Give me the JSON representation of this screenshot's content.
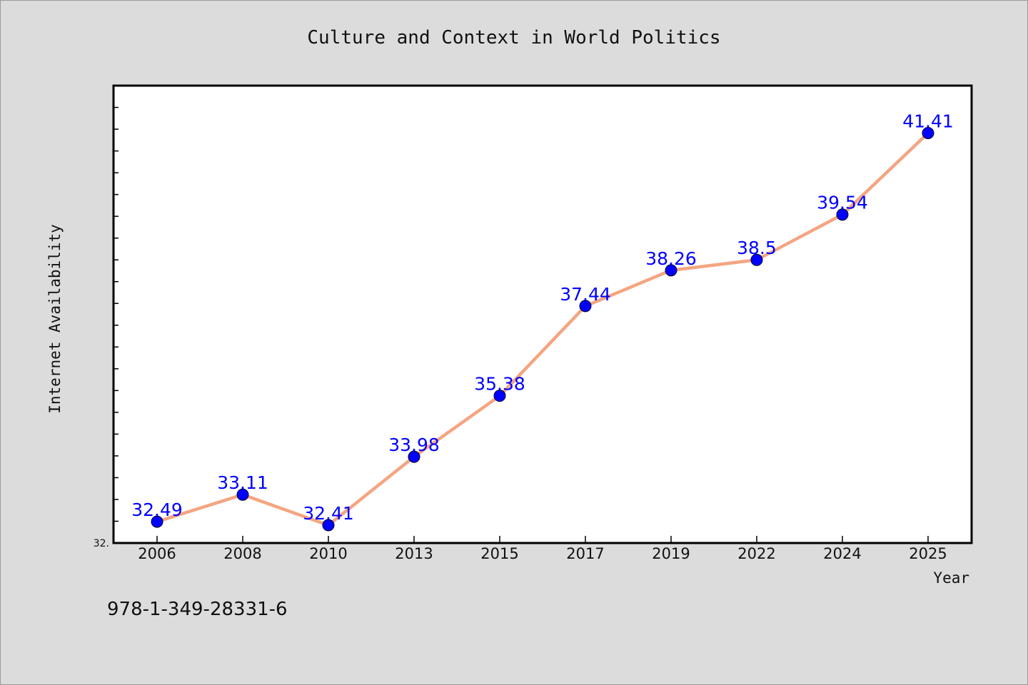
{
  "chart_data": {
    "type": "line",
    "title": "Culture and Context in World Politics",
    "xlabel": "Year",
    "ylabel": "Internet Availability",
    "categories": [
      "2006",
      "2008",
      "2010",
      "2013",
      "2015",
      "2017",
      "2019",
      "2022",
      "2024",
      "2025"
    ],
    "series": [
      {
        "values": [
          32.49,
          33.11,
          32.41,
          33.98,
          35.38,
          37.44,
          38.26,
          38.5,
          39.54,
          41.41
        ]
      }
    ],
    "data_labels": [
      "32.49",
      "33.11",
      "32.41",
      "33.98",
      "35.38",
      "37.44",
      "38.26",
      "38.5",
      "39.54",
      "41.41"
    ],
    "ylim": [
      32.0,
      42.5
    ],
    "y_tick_labels": [
      "32."
    ],
    "grid": false,
    "colors": {
      "line": "#f4a582",
      "marker": "#0000ff",
      "label": "#0000ff",
      "background": "#dcdcdc",
      "plot_background": "#ffffff"
    }
  },
  "footer_text": "978-1-349-28331-6"
}
